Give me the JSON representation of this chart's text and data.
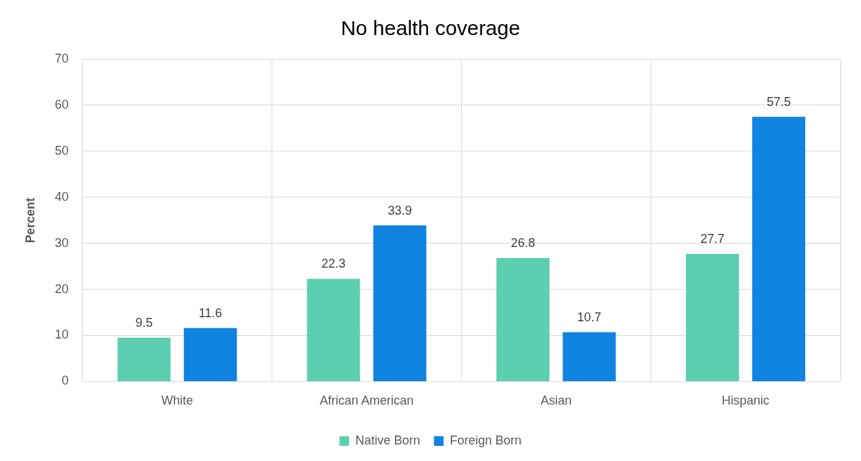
{
  "chart_data": {
    "type": "bar",
    "title": "No health coverage",
    "ylabel": "Percent",
    "categories": [
      "White",
      "African American",
      "Asian",
      "Hispanic"
    ],
    "series": [
      {
        "name": "Native Born",
        "color": "#5ccfb0",
        "values": [
          9.5,
          22.3,
          26.8,
          27.7
        ]
      },
      {
        "name": "Foreign Born",
        "color": "#1183e0",
        "values": [
          11.6,
          33.9,
          10.7,
          57.5
        ]
      }
    ],
    "ylim": [
      0,
      70
    ],
    "yticks": [
      0,
      10,
      20,
      30,
      40,
      50,
      60,
      70
    ],
    "grid": true,
    "legend": "bottom",
    "data_labels": true
  }
}
